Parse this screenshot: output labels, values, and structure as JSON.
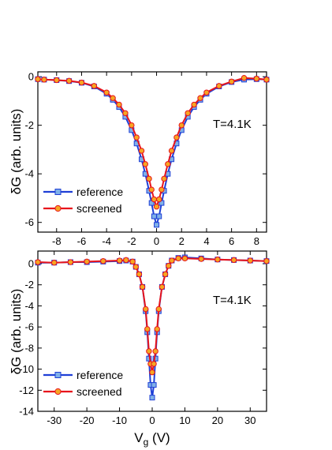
{
  "x_axis_label_main": "V",
  "x_axis_label_sub": "g",
  "x_axis_label_unit": " (V)",
  "colors": {
    "reference": "#1f3fd6",
    "reference_marker": "#7fb0e8",
    "screened": "#e8141c",
    "screened_marker": "#f5a623",
    "frame": "#000000"
  },
  "chart_data": [
    {
      "type": "line",
      "ylabel": "δG (arb. units)",
      "xlabel": "",
      "xlim": [
        -9.5,
        8.8
      ],
      "ylim": [
        -6.4,
        0.2
      ],
      "xticks": [
        -8,
        -6,
        -4,
        -2,
        0,
        2,
        4,
        6,
        8
      ],
      "yticks": [
        0,
        -2,
        -4,
        -6
      ],
      "annotation": "T=4.1K",
      "legend_position": "bottom-left",
      "series": [
        {
          "name": "reference",
          "x": [
            -9.5,
            -9.0,
            -8.0,
            -7.0,
            -6.0,
            -5.0,
            -4.0,
            -3.5,
            -3.0,
            -2.5,
            -2.0,
            -1.6,
            -1.2,
            -0.9,
            -0.6,
            -0.4,
            -0.2,
            0.0,
            0.2,
            0.4,
            0.6,
            0.9,
            1.2,
            1.6,
            2.0,
            2.5,
            3.0,
            3.5,
            4.0,
            5.0,
            6.0,
            7.0,
            8.0,
            8.8
          ],
          "y": [
            -0.1,
            -0.12,
            -0.14,
            -0.18,
            -0.25,
            -0.4,
            -0.7,
            -0.95,
            -1.25,
            -1.65,
            -2.2,
            -2.75,
            -3.4,
            -4.0,
            -4.7,
            -5.2,
            -5.75,
            -6.1,
            -5.75,
            -5.2,
            -4.7,
            -4.0,
            -3.4,
            -2.75,
            -2.2,
            -1.65,
            -1.25,
            -0.95,
            -0.7,
            -0.4,
            -0.22,
            -0.12,
            -0.1,
            -0.12
          ]
        },
        {
          "name": "screened",
          "x": [
            -9.5,
            -9.0,
            -8.0,
            -7.0,
            -6.0,
            -5.0,
            -4.0,
            -3.5,
            -3.0,
            -2.5,
            -2.0,
            -1.6,
            -1.2,
            -0.9,
            -0.6,
            -0.4,
            -0.2,
            0.0,
            0.2,
            0.4,
            0.6,
            0.9,
            1.2,
            1.6,
            2.0,
            2.5,
            3.0,
            3.5,
            4.0,
            5.0,
            6.0,
            7.0,
            8.0,
            8.8
          ],
          "y": [
            -0.1,
            -0.12,
            -0.14,
            -0.17,
            -0.24,
            -0.38,
            -0.65,
            -0.88,
            -1.15,
            -1.5,
            -2.0,
            -2.5,
            -3.05,
            -3.6,
            -4.2,
            -4.65,
            -5.05,
            -5.35,
            -5.05,
            -4.65,
            -4.2,
            -3.6,
            -3.05,
            -2.5,
            -2.0,
            -1.5,
            -1.15,
            -0.88,
            -0.65,
            -0.38,
            -0.2,
            -0.05,
            -0.08,
            -0.12
          ]
        }
      ]
    },
    {
      "type": "line",
      "ylabel": "δG (arb. units)",
      "xlabel": "Vg (V)",
      "xlim": [
        -35,
        35
      ],
      "ylim": [
        -14,
        1.2
      ],
      "xticks": [
        -30,
        -20,
        -10,
        0,
        10,
        20,
        30
      ],
      "yticks": [
        0,
        -2,
        -4,
        -6,
        -8,
        -10,
        -12,
        -14
      ],
      "annotation": "T=4.1K",
      "legend_position": "bottom-left",
      "series": [
        {
          "name": "reference",
          "x": [
            -35,
            -30,
            -25,
            -20,
            -15,
            -10,
            -8,
            -6,
            -5,
            -4,
            -3,
            -2,
            -1.5,
            -1,
            -0.5,
            0,
            0.5,
            1,
            1.5,
            2,
            3,
            4,
            5,
            6,
            8,
            10,
            15,
            20,
            25,
            30,
            35
          ],
          "y": [
            0.1,
            0.1,
            0.15,
            0.15,
            0.2,
            0.25,
            0.3,
            0.2,
            -0.3,
            -1.0,
            -2.2,
            -4.5,
            -6.5,
            -9.0,
            -11.5,
            -12.7,
            -11.5,
            -9.0,
            -6.5,
            -4.5,
            -2.2,
            -1.0,
            -0.2,
            0.3,
            0.55,
            0.6,
            0.5,
            0.4,
            0.35,
            0.3,
            0.25
          ]
        },
        {
          "name": "screened",
          "x": [
            -35,
            -30,
            -25,
            -20,
            -15,
            -10,
            -8,
            -6,
            -5,
            -4,
            -3,
            -2,
            -1.5,
            -1,
            -0.5,
            0,
            0.5,
            1,
            1.5,
            2,
            3,
            4,
            5,
            6,
            8,
            10,
            15,
            20,
            25,
            30,
            35
          ],
          "y": [
            0.15,
            0.1,
            0.15,
            0.2,
            0.25,
            0.3,
            0.35,
            0.2,
            -0.3,
            -1.0,
            -2.2,
            -4.3,
            -6.2,
            -8.3,
            -9.5,
            -10.3,
            -9.5,
            -8.3,
            -6.2,
            -4.3,
            -2.2,
            -1.0,
            -0.2,
            0.3,
            0.5,
            0.5,
            0.45,
            0.4,
            0.35,
            0.3,
            0.25
          ]
        }
      ]
    }
  ]
}
